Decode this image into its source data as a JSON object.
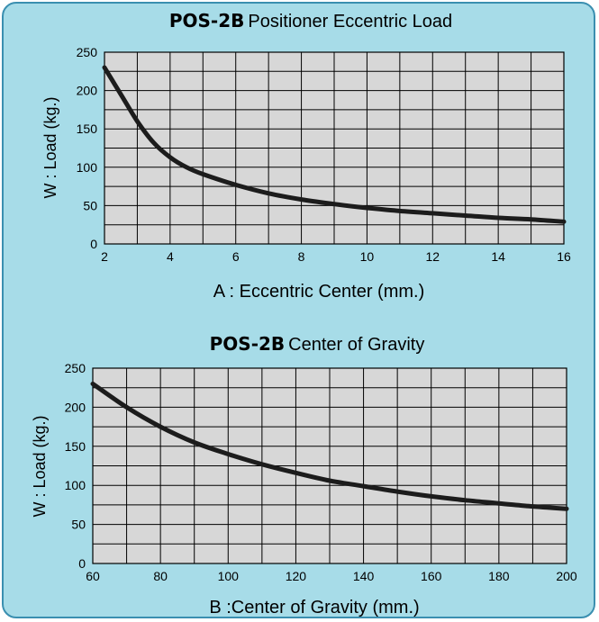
{
  "colors": {
    "panel_bg": "#a7dce8",
    "panel_border": "#3a8fb0",
    "plot_bg": "#d7d7d7",
    "grid": "#000000",
    "curve": "#1c1c1c"
  },
  "chart_data": [
    {
      "type": "line",
      "title_bold": "POS-2B",
      "title": "Positioner Eccentric Load",
      "xlabel": "A : Eccentric Center (mm.)",
      "ylabel": "W : Load (kg.)",
      "xlim": [
        2,
        16
      ],
      "ylim": [
        0,
        250
      ],
      "xticks": [
        2,
        4,
        6,
        8,
        10,
        12,
        14,
        16
      ],
      "yticks": [
        0,
        50,
        100,
        150,
        200,
        250
      ],
      "grid": true,
      "series": [
        {
          "x": [
            2,
            2.5,
            3,
            3.5,
            4,
            4.5,
            5,
            6,
            7,
            8,
            9,
            10,
            11,
            12,
            13,
            14,
            15,
            16
          ],
          "y": [
            230,
            195,
            160,
            132,
            113,
            100,
            91,
            77,
            66,
            58,
            52,
            47,
            43,
            40,
            37,
            34,
            32,
            29
          ]
        }
      ]
    },
    {
      "type": "line",
      "title_bold": "POS-2B",
      "title": "Center of Gravity",
      "xlabel": "B :Center of Gravity (mm.)",
      "ylabel": "W : Load (kg.)",
      "xlim": [
        60,
        200
      ],
      "ylim": [
        0,
        250
      ],
      "xticks": [
        60,
        80,
        100,
        120,
        140,
        160,
        180,
        200
      ],
      "yticks": [
        0,
        50,
        100,
        150,
        200,
        250
      ],
      "grid": true,
      "series": [
        {
          "x": [
            60,
            70,
            80,
            90,
            100,
            110,
            120,
            130,
            140,
            150,
            160,
            170,
            180,
            190,
            200
          ],
          "y": [
            230,
            200,
            175,
            155,
            140,
            127,
            116,
            106,
            99,
            92,
            86,
            81,
            77,
            73,
            70
          ]
        }
      ]
    }
  ]
}
